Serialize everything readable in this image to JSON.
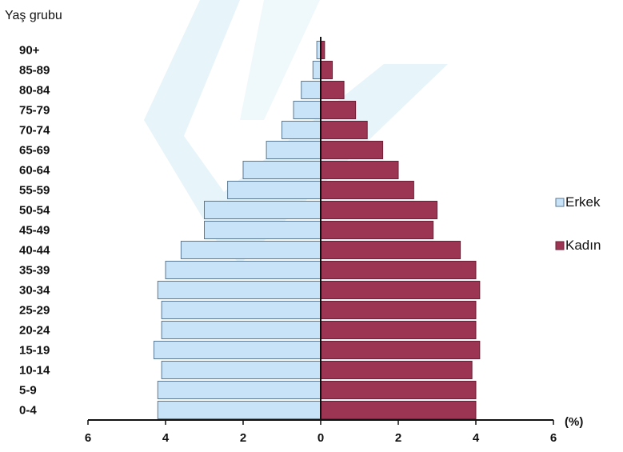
{
  "chart_data": {
    "type": "bar",
    "orientation": "horizontal-pyramid",
    "ylabel": "Yaş grubu",
    "xunit": "(%)",
    "categories": [
      "0-4",
      "5-9",
      "10-14",
      "15-19",
      "20-24",
      "25-29",
      "30-34",
      "35-39",
      "40-44",
      "45-49",
      "50-54",
      "55-59",
      "60-64",
      "65-69",
      "70-74",
      "75-79",
      "80-84",
      "85-89",
      "90+"
    ],
    "series": [
      {
        "name": "Erkek",
        "color": "#c8e2f8",
        "side": "left",
        "values": [
          4.2,
          4.2,
          4.1,
          4.3,
          4.1,
          4.1,
          4.2,
          4.0,
          3.6,
          3.0,
          3.0,
          2.4,
          2.0,
          1.4,
          1.0,
          0.7,
          0.5,
          0.2,
          0.1
        ]
      },
      {
        "name": "Kadın",
        "color": "#9c3553",
        "side": "right",
        "values": [
          4.0,
          4.0,
          3.9,
          4.1,
          4.0,
          4.0,
          4.1,
          4.0,
          3.6,
          2.9,
          3.0,
          2.4,
          2.0,
          1.6,
          1.2,
          0.9,
          0.6,
          0.3,
          0.1
        ]
      }
    ],
    "xlim": [
      -6,
      6
    ],
    "xticks": [
      6,
      4,
      2,
      0,
      2,
      4,
      6
    ],
    "grid": false,
    "legend_position": "right"
  }
}
